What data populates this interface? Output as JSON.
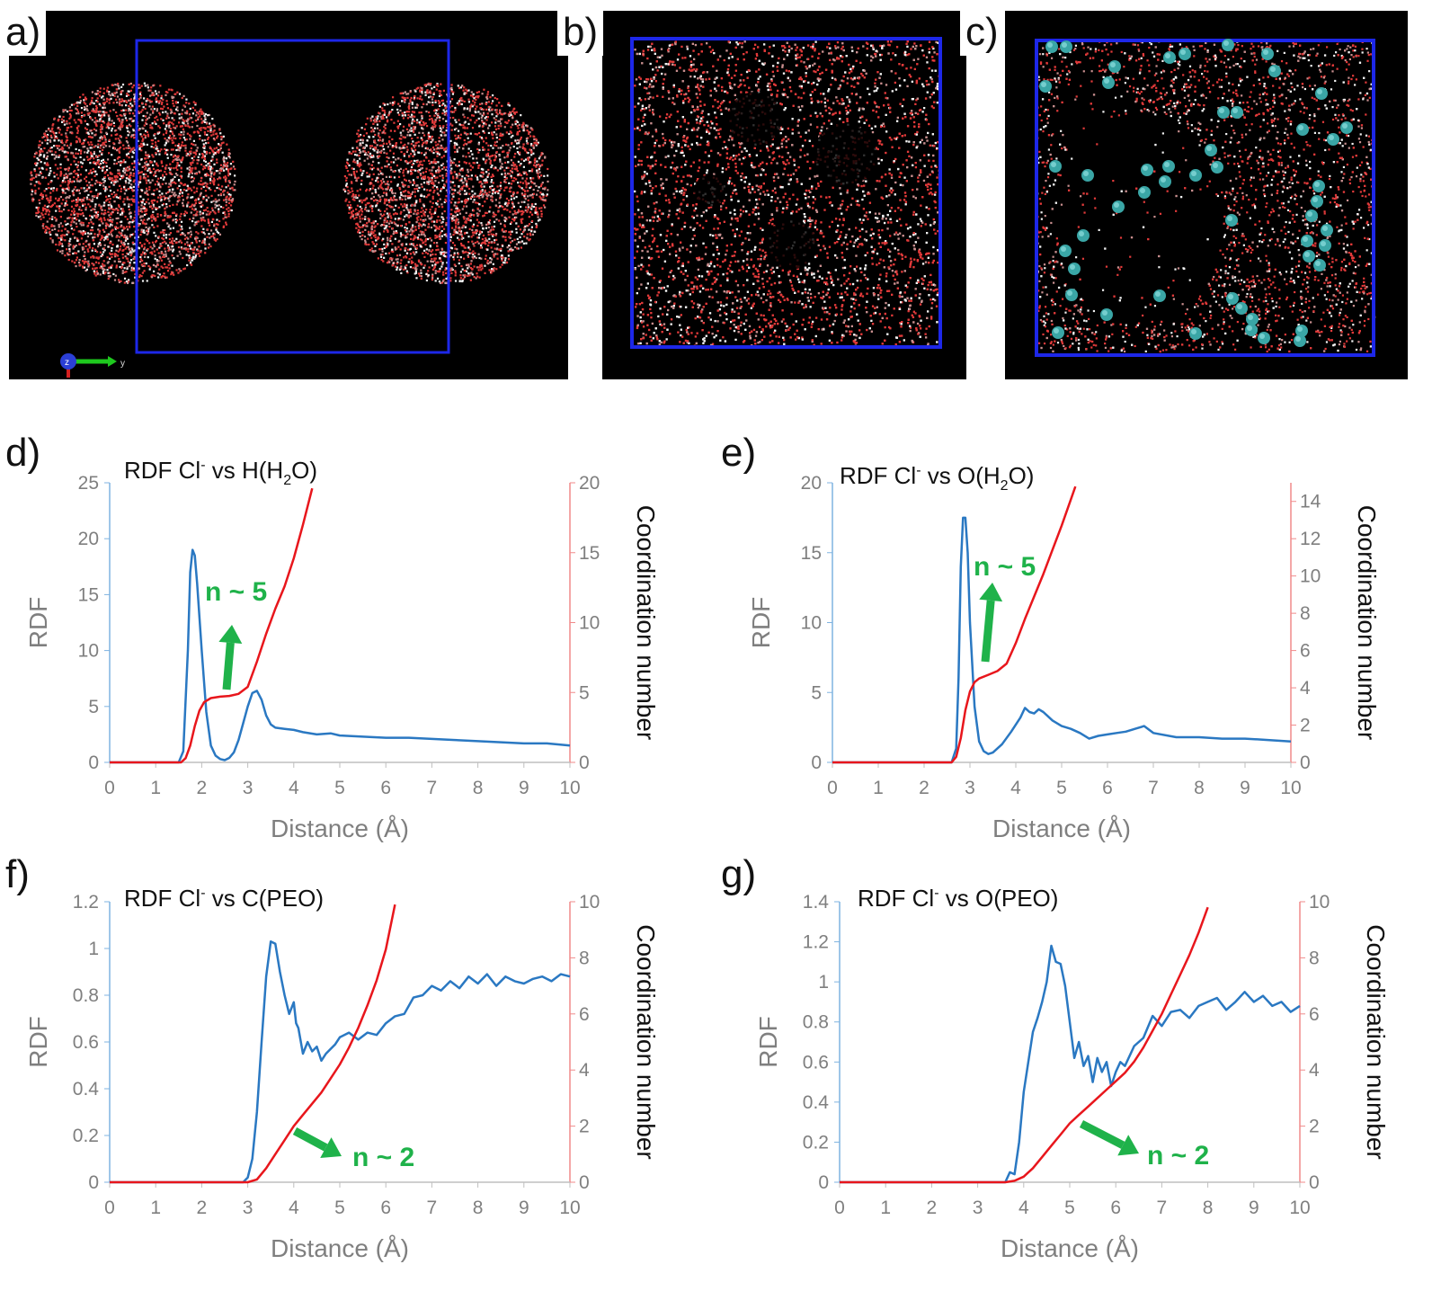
{
  "panels_top": [
    {
      "label": "a)",
      "has_second_cluster": true
    },
    {
      "label": "b)"
    },
    {
      "label": "c)"
    }
  ],
  "axis_triad": {
    "z_label": "z",
    "y_label": "y"
  },
  "colors": {
    "rdf": "#2a78c2",
    "cn": "#e8161c",
    "box": "#1d27e8",
    "annotation": "#1fb24a",
    "axis_left": "#7fb3e0",
    "axis_right": "#f08a8a"
  },
  "chart_data": [
    {
      "panel": "d)",
      "type": "line",
      "title": "RDF Cl",
      "title_sup": "-",
      "title_rest": " vs H(H",
      "title_sub": "2",
      "title_end": "O)",
      "xlabel": "Distance (Å)",
      "ylabel": "RDF",
      "y2label": "Coordination number",
      "xlim": [
        0,
        10
      ],
      "ylim": [
        0,
        25
      ],
      "y2lim": [
        0,
        20
      ],
      "xticks": [
        "0",
        "1",
        "2",
        "3",
        "4",
        "5",
        "6",
        "7",
        "8",
        "9",
        "10"
      ],
      "yticks": [
        "0",
        "5",
        "10",
        "15",
        "20",
        "25"
      ],
      "y2ticks": [
        "0",
        "5",
        "10",
        "15",
        "20"
      ],
      "annotation": "n ~ 5",
      "series": [
        {
          "axis": "left",
          "x": [
            0,
            1.5,
            1.6,
            1.7,
            1.75,
            1.8,
            1.85,
            1.9,
            2.0,
            2.1,
            2.2,
            2.3,
            2.4,
            2.5,
            2.6,
            2.7,
            2.8,
            2.9,
            3.0,
            3.1,
            3.2,
            3.3,
            3.4,
            3.5,
            3.6,
            3.8,
            4.0,
            4.2,
            4.5,
            4.8,
            5.0,
            5.5,
            6.0,
            6.5,
            7.0,
            7.5,
            8.0,
            8.5,
            9.0,
            9.5,
            10.0
          ],
          "y": [
            0,
            0,
            1,
            10,
            17,
            19,
            18.5,
            16,
            10,
            4.5,
            1.5,
            0.6,
            0.3,
            0.2,
            0.4,
            0.9,
            2,
            3.5,
            5,
            6.2,
            6.4,
            5.6,
            4.2,
            3.4,
            3.1,
            3.0,
            2.9,
            2.7,
            2.5,
            2.6,
            2.4,
            2.3,
            2.2,
            2.2,
            2.1,
            2.0,
            1.9,
            1.8,
            1.7,
            1.7,
            1.5
          ]
        },
        {
          "axis": "right",
          "x": [
            0,
            1.55,
            1.65,
            1.75,
            1.85,
            1.95,
            2.05,
            2.2,
            2.4,
            2.6,
            2.8,
            3.0,
            3.2,
            3.4,
            3.6,
            3.8,
            4.0,
            4.2,
            4.4
          ],
          "y": [
            0,
            0,
            0.3,
            1.2,
            2.6,
            3.7,
            4.3,
            4.6,
            4.7,
            4.75,
            4.9,
            5.4,
            7.2,
            9.2,
            11.0,
            12.6,
            14.6,
            17.0,
            19.6
          ]
        }
      ]
    },
    {
      "panel": "e)",
      "type": "line",
      "title": "RDF Cl",
      "title_sup": "-",
      "title_rest": " vs O(H",
      "title_sub": "2",
      "title_end": "O)",
      "xlabel": "Distance (Å)",
      "ylabel": "RDF",
      "y2label": "Coordination number",
      "xlim": [
        0,
        10
      ],
      "ylim": [
        0,
        20
      ],
      "y2lim": [
        0,
        15
      ],
      "xticks": [
        "0",
        "1",
        "2",
        "3",
        "4",
        "5",
        "6",
        "7",
        "8",
        "9",
        "10"
      ],
      "yticks": [
        "0",
        "5",
        "10",
        "15",
        "20"
      ],
      "y2ticks": [
        "0",
        "2",
        "4",
        "6",
        "8",
        "10",
        "12",
        "14"
      ],
      "annotation": "n ~ 5",
      "series": [
        {
          "axis": "left",
          "x": [
            0,
            2.6,
            2.7,
            2.75,
            2.8,
            2.85,
            2.9,
            2.95,
            3.0,
            3.1,
            3.2,
            3.3,
            3.4,
            3.5,
            3.7,
            3.9,
            4.1,
            4.2,
            4.3,
            4.4,
            4.5,
            4.6,
            4.7,
            4.8,
            5.0,
            5.2,
            5.4,
            5.6,
            5.8,
            6.0,
            6.2,
            6.4,
            6.6,
            6.8,
            7.0,
            7.5,
            8.0,
            8.5,
            9.0,
            9.5,
            10.0
          ],
          "y": [
            0,
            0,
            1,
            6,
            14,
            17.5,
            17.5,
            15,
            10,
            4,
            1.5,
            0.8,
            0.6,
            0.7,
            1.3,
            2.2,
            3.2,
            3.9,
            3.6,
            3.5,
            3.8,
            3.6,
            3.3,
            3.0,
            2.6,
            2.4,
            2.1,
            1.7,
            1.9,
            2.0,
            2.1,
            2.2,
            2.4,
            2.6,
            2.1,
            1.8,
            1.8,
            1.7,
            1.7,
            1.6,
            1.5
          ]
        },
        {
          "axis": "right",
          "x": [
            0,
            2.6,
            2.7,
            2.8,
            2.9,
            3.0,
            3.1,
            3.2,
            3.4,
            3.6,
            3.8,
            4.0,
            4.2,
            4.4,
            4.6,
            4.8,
            5.0,
            5.2,
            5.3
          ],
          "y": [
            0,
            0,
            0.3,
            1.3,
            2.8,
            3.8,
            4.3,
            4.5,
            4.7,
            4.9,
            5.3,
            6.4,
            7.7,
            8.9,
            10.1,
            11.4,
            12.7,
            14.1,
            14.8
          ]
        }
      ]
    },
    {
      "panel": "f)",
      "type": "line",
      "title": "RDF Cl",
      "title_sup": "-",
      "title_rest": " vs C(PEO)",
      "title_sub": "",
      "title_end": "",
      "xlabel": "Distance (Å)",
      "ylabel": "RDF",
      "y2label": "Coordination number",
      "xlim": [
        0,
        10
      ],
      "ylim": [
        0,
        1.2
      ],
      "y2lim": [
        0,
        10
      ],
      "xticks": [
        "0",
        "1",
        "2",
        "3",
        "4",
        "5",
        "6",
        "7",
        "8",
        "9",
        "10"
      ],
      "yticks": [
        "0",
        "0.2",
        "0.4",
        "0.6",
        "0.8",
        "1",
        "1.2"
      ],
      "y2ticks": [
        "0",
        "2",
        "4",
        "6",
        "8",
        "10"
      ],
      "annotation": "n ~ 2",
      "series": [
        {
          "axis": "left",
          "x": [
            0,
            2.9,
            3.0,
            3.1,
            3.2,
            3.3,
            3.4,
            3.5,
            3.6,
            3.7,
            3.8,
            3.9,
            4.0,
            4.05,
            4.1,
            4.2,
            4.3,
            4.4,
            4.5,
            4.6,
            4.7,
            4.8,
            4.9,
            5.0,
            5.2,
            5.4,
            5.6,
            5.8,
            6.0,
            6.2,
            6.4,
            6.6,
            6.8,
            7.0,
            7.2,
            7.4,
            7.6,
            7.8,
            8.0,
            8.2,
            8.4,
            8.6,
            8.8,
            9.0,
            9.2,
            9.4,
            9.6,
            9.8,
            10.0
          ],
          "y": [
            0,
            0,
            0.02,
            0.1,
            0.3,
            0.6,
            0.88,
            1.03,
            1.02,
            0.9,
            0.8,
            0.72,
            0.77,
            0.68,
            0.66,
            0.55,
            0.6,
            0.56,
            0.58,
            0.52,
            0.55,
            0.57,
            0.59,
            0.62,
            0.64,
            0.61,
            0.64,
            0.63,
            0.68,
            0.71,
            0.72,
            0.79,
            0.8,
            0.84,
            0.82,
            0.86,
            0.83,
            0.88,
            0.85,
            0.89,
            0.84,
            0.88,
            0.86,
            0.85,
            0.87,
            0.88,
            0.86,
            0.89,
            0.88
          ]
        },
        {
          "axis": "right",
          "x": [
            0,
            3.0,
            3.2,
            3.4,
            3.6,
            3.8,
            4.0,
            4.2,
            4.4,
            4.6,
            4.8,
            5.0,
            5.2,
            5.4,
            5.6,
            5.8,
            6.0,
            6.2
          ],
          "y": [
            0,
            0,
            0.1,
            0.5,
            1.0,
            1.5,
            2.0,
            2.4,
            2.8,
            3.2,
            3.7,
            4.2,
            4.8,
            5.5,
            6.3,
            7.2,
            8.3,
            9.9
          ]
        }
      ]
    },
    {
      "panel": "g)",
      "type": "line",
      "title": "RDF Cl",
      "title_sup": "-",
      "title_rest": " vs O(PEO)",
      "title_sub": "",
      "title_end": "",
      "xlabel": "Distance (Å)",
      "ylabel": "RDF",
      "y2label": "Coordination number",
      "xlim": [
        0,
        10
      ],
      "ylim": [
        0,
        1.4
      ],
      "y2lim": [
        0,
        10
      ],
      "xticks": [
        "0",
        "1",
        "2",
        "3",
        "4",
        "5",
        "6",
        "7",
        "8",
        "9",
        "10"
      ],
      "yticks": [
        "0",
        "0.2",
        "0.4",
        "0.6",
        "0.8",
        "1",
        "1.2",
        "1.4"
      ],
      "y2ticks": [
        "0",
        "2",
        "4",
        "6",
        "8",
        "10"
      ],
      "annotation": "n ~ 2",
      "series": [
        {
          "axis": "left",
          "x": [
            0,
            3.6,
            3.7,
            3.8,
            3.9,
            4.0,
            4.1,
            4.2,
            4.3,
            4.4,
            4.5,
            4.6,
            4.7,
            4.8,
            4.9,
            5.0,
            5.1,
            5.2,
            5.3,
            5.4,
            5.5,
            5.6,
            5.7,
            5.8,
            5.9,
            6.0,
            6.1,
            6.2,
            6.4,
            6.6,
            6.8,
            7.0,
            7.2,
            7.4,
            7.6,
            7.8,
            8.0,
            8.2,
            8.4,
            8.6,
            8.8,
            9.0,
            9.2,
            9.4,
            9.6,
            9.8,
            10.0
          ],
          "y": [
            0,
            0,
            0.05,
            0.04,
            0.2,
            0.45,
            0.6,
            0.75,
            0.82,
            0.9,
            1.0,
            1.18,
            1.1,
            1.09,
            0.98,
            0.8,
            0.62,
            0.7,
            0.58,
            0.63,
            0.5,
            0.62,
            0.55,
            0.6,
            0.48,
            0.55,
            0.6,
            0.58,
            0.68,
            0.72,
            0.83,
            0.78,
            0.85,
            0.86,
            0.82,
            0.88,
            0.9,
            0.92,
            0.86,
            0.9,
            0.95,
            0.9,
            0.93,
            0.88,
            0.9,
            0.85,
            0.88
          ]
        },
        {
          "axis": "right",
          "x": [
            0,
            3.6,
            3.8,
            4.0,
            4.2,
            4.4,
            4.6,
            4.8,
            5.0,
            5.2,
            5.4,
            5.6,
            5.8,
            6.0,
            6.2,
            6.4,
            6.6,
            6.8,
            7.0,
            7.2,
            7.4,
            7.6,
            7.8,
            8.0
          ],
          "y": [
            0,
            0,
            0.05,
            0.2,
            0.5,
            0.9,
            1.3,
            1.7,
            2.1,
            2.4,
            2.7,
            3.0,
            3.3,
            3.6,
            3.9,
            4.3,
            4.8,
            5.4,
            6.0,
            6.7,
            7.4,
            8.1,
            8.9,
            9.8
          ]
        }
      ]
    }
  ]
}
